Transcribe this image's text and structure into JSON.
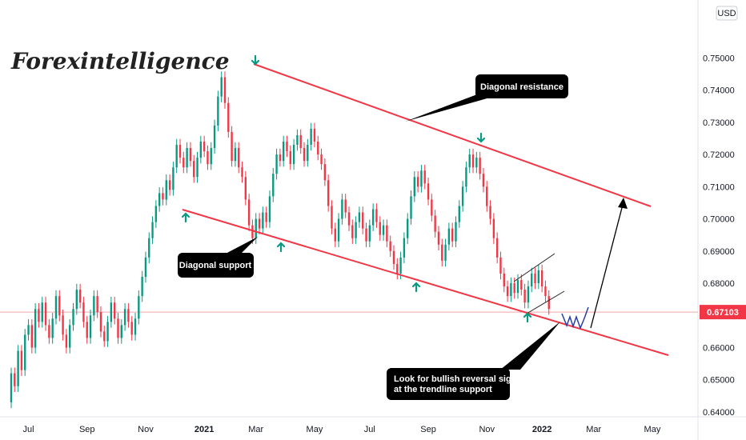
{
  "chart_data": {
    "type": "candlestick",
    "currency": "USD",
    "watermark": "Forexintelligence",
    "price_label": "0.67103",
    "current_price": 0.67103,
    "y_ticks": [
      "0.75000",
      "0.74000",
      "0.73000",
      "0.72000",
      "0.71000",
      "0.70000",
      "0.69000",
      "0.68000",
      "0.66000",
      "0.65000",
      "0.64000"
    ],
    "y_tick_values": [
      0.75,
      0.74,
      0.73,
      0.72,
      0.71,
      0.7,
      0.69,
      0.68,
      0.66,
      0.65,
      0.64
    ],
    "ylim": [
      0.6385,
      0.7665
    ],
    "x_ticks": [
      "Jul",
      "Sep",
      "Nov",
      "2021",
      "Mar",
      "May",
      "Jul",
      "Sep",
      "Nov",
      "2022",
      "Mar",
      "May"
    ],
    "x_tick_index": [
      5,
      22,
      39,
      56,
      71,
      88,
      104,
      121,
      138,
      154,
      169,
      186
    ],
    "x_range": [
      0,
      196
    ],
    "candles": [
      [
        0.643,
        0.652
      ],
      [
        0.652,
        0.648
      ],
      [
        0.648,
        0.659
      ],
      [
        0.659,
        0.653
      ],
      [
        0.653,
        0.664
      ],
      [
        0.664,
        0.667
      ],
      [
        0.667,
        0.66
      ],
      [
        0.66,
        0.672
      ],
      [
        0.672,
        0.668
      ],
      [
        0.668,
        0.674
      ],
      [
        0.674,
        0.667
      ],
      [
        0.667,
        0.663
      ],
      [
        0.663,
        0.669
      ],
      [
        0.669,
        0.676
      ],
      [
        0.676,
        0.67
      ],
      [
        0.67,
        0.664
      ],
      [
        0.664,
        0.66
      ],
      [
        0.66,
        0.667
      ],
      [
        0.667,
        0.672
      ],
      [
        0.672,
        0.678
      ],
      [
        0.678,
        0.674
      ],
      [
        0.674,
        0.668
      ],
      [
        0.668,
        0.663
      ],
      [
        0.663,
        0.67
      ],
      [
        0.67,
        0.676
      ],
      [
        0.676,
        0.671
      ],
      [
        0.671,
        0.665
      ],
      [
        0.665,
        0.662
      ],
      [
        0.662,
        0.668
      ],
      [
        0.668,
        0.674
      ],
      [
        0.674,
        0.669
      ],
      [
        0.669,
        0.663
      ],
      [
        0.663,
        0.667
      ],
      [
        0.667,
        0.672
      ],
      [
        0.672,
        0.668
      ],
      [
        0.668,
        0.664
      ],
      [
        0.664,
        0.669
      ],
      [
        0.669,
        0.676
      ],
      [
        0.676,
        0.682
      ],
      [
        0.682,
        0.688
      ],
      [
        0.688,
        0.694
      ],
      [
        0.694,
        0.699
      ],
      [
        0.699,
        0.704
      ],
      [
        0.704,
        0.708
      ],
      [
        0.708,
        0.706
      ],
      [
        0.706,
        0.712
      ],
      [
        0.712,
        0.709
      ],
      [
        0.709,
        0.716
      ],
      [
        0.716,
        0.723
      ],
      [
        0.723,
        0.719
      ],
      [
        0.719,
        0.716
      ],
      [
        0.716,
        0.722
      ],
      [
        0.722,
        0.718
      ],
      [
        0.718,
        0.713
      ],
      [
        0.713,
        0.719
      ],
      [
        0.719,
        0.724
      ],
      [
        0.724,
        0.721
      ],
      [
        0.721,
        0.717
      ],
      [
        0.717,
        0.722
      ],
      [
        0.722,
        0.729
      ],
      [
        0.729,
        0.738
      ],
      [
        0.738,
        0.744
      ],
      [
        0.744,
        0.736
      ],
      [
        0.736,
        0.727
      ],
      [
        0.727,
        0.718
      ],
      [
        0.718,
        0.722
      ],
      [
        0.722,
        0.716
      ],
      [
        0.716,
        0.713
      ],
      [
        0.713,
        0.706
      ],
      [
        0.706,
        0.698
      ],
      [
        0.698,
        0.694
      ],
      [
        0.694,
        0.7
      ],
      [
        0.7,
        0.697
      ],
      [
        0.697,
        0.702
      ],
      [
        0.702,
        0.699
      ],
      [
        0.699,
        0.707
      ],
      [
        0.707,
        0.714
      ],
      [
        0.714,
        0.72
      ],
      [
        0.72,
        0.718
      ],
      [
        0.718,
        0.724
      ],
      [
        0.724,
        0.721
      ],
      [
        0.721,
        0.717
      ],
      [
        0.717,
        0.723
      ],
      [
        0.723,
        0.726
      ],
      [
        0.726,
        0.722
      ],
      [
        0.722,
        0.718
      ],
      [
        0.718,
        0.723
      ],
      [
        0.723,
        0.728
      ],
      [
        0.728,
        0.724
      ],
      [
        0.724,
        0.72
      ],
      [
        0.72,
        0.717
      ],
      [
        0.717,
        0.712
      ],
      [
        0.712,
        0.704
      ],
      [
        0.704,
        0.697
      ],
      [
        0.697,
        0.693
      ],
      [
        0.693,
        0.7
      ],
      [
        0.7,
        0.706
      ],
      [
        0.706,
        0.702
      ],
      [
        0.702,
        0.698
      ],
      [
        0.698,
        0.694
      ],
      [
        0.694,
        0.699
      ],
      [
        0.699,
        0.702
      ],
      [
        0.702,
        0.697
      ],
      [
        0.697,
        0.693
      ],
      [
        0.693,
        0.698
      ],
      [
        0.698,
        0.703
      ],
      [
        0.703,
        0.699
      ],
      [
        0.699,
        0.695
      ],
      [
        0.695,
        0.698
      ],
      [
        0.698,
        0.693
      ],
      [
        0.693,
        0.69
      ],
      [
        0.69,
        0.686
      ],
      [
        0.686,
        0.683
      ],
      [
        0.683,
        0.688
      ],
      [
        0.688,
        0.694
      ],
      [
        0.694,
        0.7
      ],
      [
        0.7,
        0.707
      ],
      [
        0.707,
        0.713
      ],
      [
        0.713,
        0.71
      ],
      [
        0.71,
        0.715
      ],
      [
        0.715,
        0.711
      ],
      [
        0.711,
        0.706
      ],
      [
        0.706,
        0.701
      ],
      [
        0.701,
        0.696
      ],
      [
        0.696,
        0.692
      ],
      [
        0.692,
        0.687
      ],
      [
        0.687,
        0.692
      ],
      [
        0.692,
        0.697
      ],
      [
        0.697,
        0.693
      ],
      [
        0.693,
        0.699
      ],
      [
        0.699,
        0.704
      ],
      [
        0.704,
        0.71
      ],
      [
        0.71,
        0.716
      ],
      [
        0.716,
        0.72
      ],
      [
        0.72,
        0.716
      ],
      [
        0.716,
        0.719
      ],
      [
        0.719,
        0.714
      ],
      [
        0.714,
        0.71
      ],
      [
        0.71,
        0.704
      ],
      [
        0.704,
        0.7
      ],
      [
        0.7,
        0.694
      ],
      [
        0.694,
        0.688
      ],
      [
        0.688,
        0.683
      ],
      [
        0.683,
        0.679
      ],
      [
        0.679,
        0.676
      ],
      [
        0.676,
        0.68
      ],
      [
        0.68,
        0.677
      ],
      [
        0.677,
        0.681
      ],
      [
        0.681,
        0.678
      ],
      [
        0.678,
        0.674
      ],
      [
        0.674,
        0.679
      ],
      [
        0.679,
        0.683
      ],
      [
        0.683,
        0.68
      ],
      [
        0.68,
        0.684
      ],
      [
        0.684,
        0.679
      ],
      [
        0.679,
        0.676
      ],
      [
        0.676,
        0.672
      ]
    ],
    "annotations": [
      {
        "label": "Diagonal resistance"
      },
      {
        "label": "Diagonal support"
      },
      {
        "label": "Look for bullish reversal signs\nat the trendline support"
      }
    ]
  }
}
